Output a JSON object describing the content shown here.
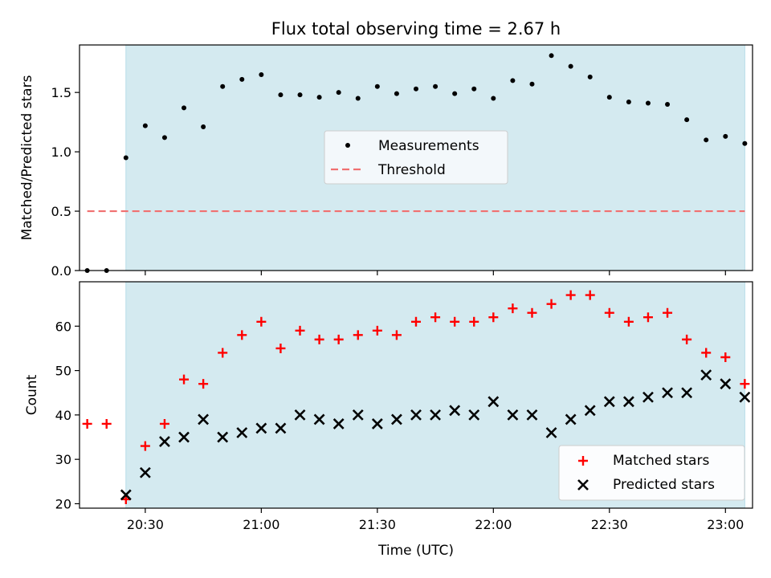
{
  "colors": {
    "shade": "#d4eaf0",
    "shade_edge": "#b7dde8",
    "measurement": "#000000",
    "threshold": "#f07070",
    "matched": "#ff0000",
    "predicted": "#000000",
    "legend_bg": "#f5f9fc"
  },
  "chart_data": [
    {
      "type": "scatter",
      "title": "Flux total observing time = 2.67 h",
      "ylabel": "Matched/Predicted stars",
      "xlabel": "",
      "xlim": [
        "20:13",
        "23:07"
      ],
      "ylim": [
        0,
        1.9
      ],
      "y_ticks": [
        0.0,
        0.5,
        1.0,
        1.5
      ],
      "y_tick_labels": [
        "0.0",
        "0.5",
        "1.0",
        "1.5"
      ],
      "shaded_span": [
        "20:25",
        "23:05"
      ],
      "legend": {
        "placement": "center",
        "entries": [
          "Measurements",
          "Threshold"
        ]
      },
      "series": [
        {
          "name": "Measurements",
          "marker": "dot",
          "x": [
            "20:15",
            "20:20",
            "20:25",
            "20:30",
            "20:35",
            "20:40",
            "20:45",
            "20:50",
            "20:55",
            "21:00",
            "21:05",
            "21:10",
            "21:15",
            "21:20",
            "21:25",
            "21:30",
            "21:35",
            "21:40",
            "21:45",
            "21:50",
            "21:55",
            "22:00",
            "22:05",
            "22:10",
            "22:15",
            "22:20",
            "22:25",
            "22:30",
            "22:35",
            "22:40",
            "22:45",
            "22:50",
            "22:55",
            "23:00",
            "23:05"
          ],
          "y": [
            0.0,
            0.0,
            0.95,
            1.22,
            1.12,
            1.37,
            1.21,
            1.55,
            1.61,
            1.65,
            1.48,
            1.48,
            1.46,
            1.5,
            1.45,
            1.55,
            1.49,
            1.53,
            1.55,
            1.49,
            1.53,
            1.45,
            1.6,
            1.57,
            1.81,
            1.72,
            1.63,
            1.46,
            1.42,
            1.41,
            1.4,
            1.27,
            1.1,
            1.13,
            1.07
          ]
        },
        {
          "name": "Threshold",
          "marker": "dashed-line",
          "x": [
            "20:15",
            "23:05"
          ],
          "y": [
            0.5,
            0.5
          ]
        }
      ]
    },
    {
      "type": "scatter",
      "title": "",
      "ylabel": "Count",
      "xlabel": "Time (UTC)",
      "xlim": [
        "20:13",
        "23:07"
      ],
      "ylim": [
        19,
        70
      ],
      "y_ticks": [
        20,
        30,
        40,
        50,
        60
      ],
      "y_tick_labels": [
        "20",
        "30",
        "40",
        "50",
        "60"
      ],
      "x_ticks": [
        "20:30",
        "21:00",
        "21:30",
        "22:00",
        "22:30",
        "23:00"
      ],
      "x_tick_labels": [
        "20:30",
        "21:00",
        "21:30",
        "22:00",
        "22:30",
        "23:00"
      ],
      "shaded_span": [
        "20:25",
        "23:05"
      ],
      "legend": {
        "placement": "lower right",
        "entries": [
          "Matched stars",
          "Predicted stars"
        ]
      },
      "series": [
        {
          "name": "Matched stars",
          "marker": "plus",
          "x": [
            "20:15",
            "20:20",
            "20:25",
            "20:30",
            "20:35",
            "20:40",
            "20:45",
            "20:50",
            "20:55",
            "21:00",
            "21:05",
            "21:10",
            "21:15",
            "21:20",
            "21:25",
            "21:30",
            "21:35",
            "21:40",
            "21:45",
            "21:50",
            "21:55",
            "22:00",
            "22:05",
            "22:10",
            "22:15",
            "22:20",
            "22:25",
            "22:30",
            "22:35",
            "22:40",
            "22:45",
            "22:50",
            "22:55",
            "23:00",
            "23:05"
          ],
          "y": [
            38,
            38,
            21,
            33,
            38,
            48,
            47,
            54,
            58,
            61,
            55,
            59,
            57,
            57,
            58,
            59,
            58,
            61,
            62,
            61,
            61,
            62,
            64,
            63,
            65,
            67,
            67,
            63,
            61,
            62,
            63,
            57,
            54,
            53,
            47
          ]
        },
        {
          "name": "Predicted stars",
          "marker": "x",
          "x": [
            "20:25",
            "20:30",
            "20:35",
            "20:40",
            "20:45",
            "20:50",
            "20:55",
            "21:00",
            "21:05",
            "21:10",
            "21:15",
            "21:20",
            "21:25",
            "21:30",
            "21:35",
            "21:40",
            "21:45",
            "21:50",
            "21:55",
            "22:00",
            "22:05",
            "22:10",
            "22:15",
            "22:20",
            "22:25",
            "22:30",
            "22:35",
            "22:40",
            "22:45",
            "22:50",
            "22:55",
            "23:00",
            "23:05"
          ],
          "y": [
            22,
            27,
            34,
            35,
            39,
            35,
            36,
            37,
            37,
            40,
            39,
            38,
            40,
            38,
            39,
            40,
            40,
            41,
            40,
            43,
            40,
            40,
            36,
            39,
            41,
            43,
            43,
            44,
            45,
            45,
            49,
            47,
            44
          ]
        }
      ]
    }
  ]
}
